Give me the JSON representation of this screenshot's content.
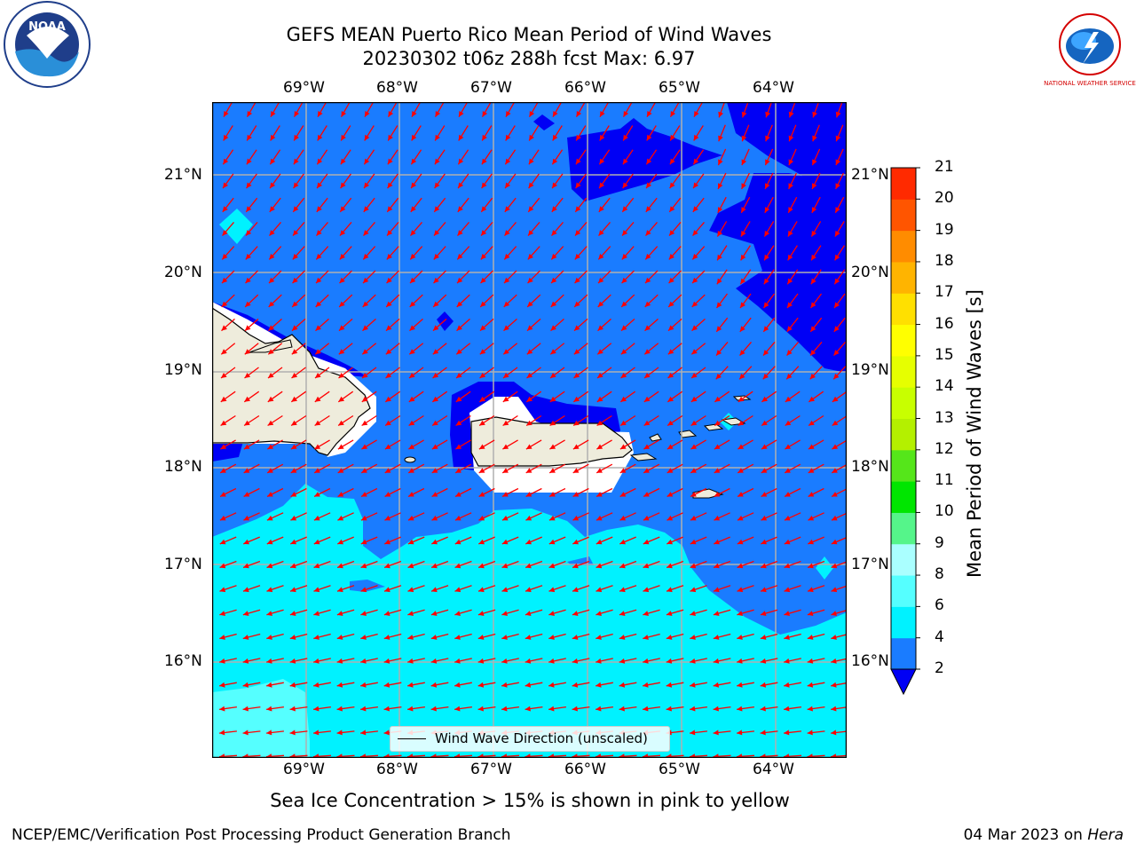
{
  "title": {
    "line1": "GEFS MEAN Puerto Rico Mean Period of Wind Waves",
    "line2": "20230302 t06z 288h fcst   Max: 6.97"
  },
  "axes": {
    "lon_labels": [
      "69°W",
      "68°W",
      "67°W",
      "66°W",
      "65°W",
      "64°W"
    ],
    "lat_labels": [
      "21°N",
      "20°N",
      "19°N",
      "18°N",
      "17°N",
      "16°N"
    ]
  },
  "colorbar": {
    "label": "Mean Period of Wind Waves [s]",
    "ticks": [
      "2",
      "4",
      "6",
      "8",
      "9",
      "10",
      "11",
      "12",
      "13",
      "14",
      "15",
      "16",
      "17",
      "18",
      "19",
      "20",
      "21"
    ],
    "colors": [
      "#1a7cff",
      "#00f2ff",
      "#55ffff",
      "#aaffff",
      "#55f58a",
      "#00e600",
      "#55e61a",
      "#b4f000",
      "#c8ff00",
      "#e6ff00",
      "#ffff00",
      "#ffe000",
      "#ffb400",
      "#ff8c00",
      "#ff5500",
      "#ff2a00",
      "#ff0000"
    ],
    "extend_color": "#0000f5"
  },
  "legend": {
    "label": "Wind Wave Direction (unscaled)"
  },
  "note": "Sea Ice Concentration > 15% is shown in pink to yellow",
  "footer": {
    "left": "NCEP/EMC/Verification Post Processing Product Generation Branch",
    "date": "04 Mar 2023 on ",
    "host": "Hera"
  },
  "logos": {
    "noaa": "NOAA",
    "nws": "NATIONAL WEATHER SERVICE"
  },
  "map_colors": {
    "deep_blue": "#0000f5",
    "mid_blue": "#1a7cff",
    "cyan": "#00f2ff",
    "light_cyan": "#55ffff",
    "land": "#eeecdc",
    "arrow": "#ff0000"
  }
}
